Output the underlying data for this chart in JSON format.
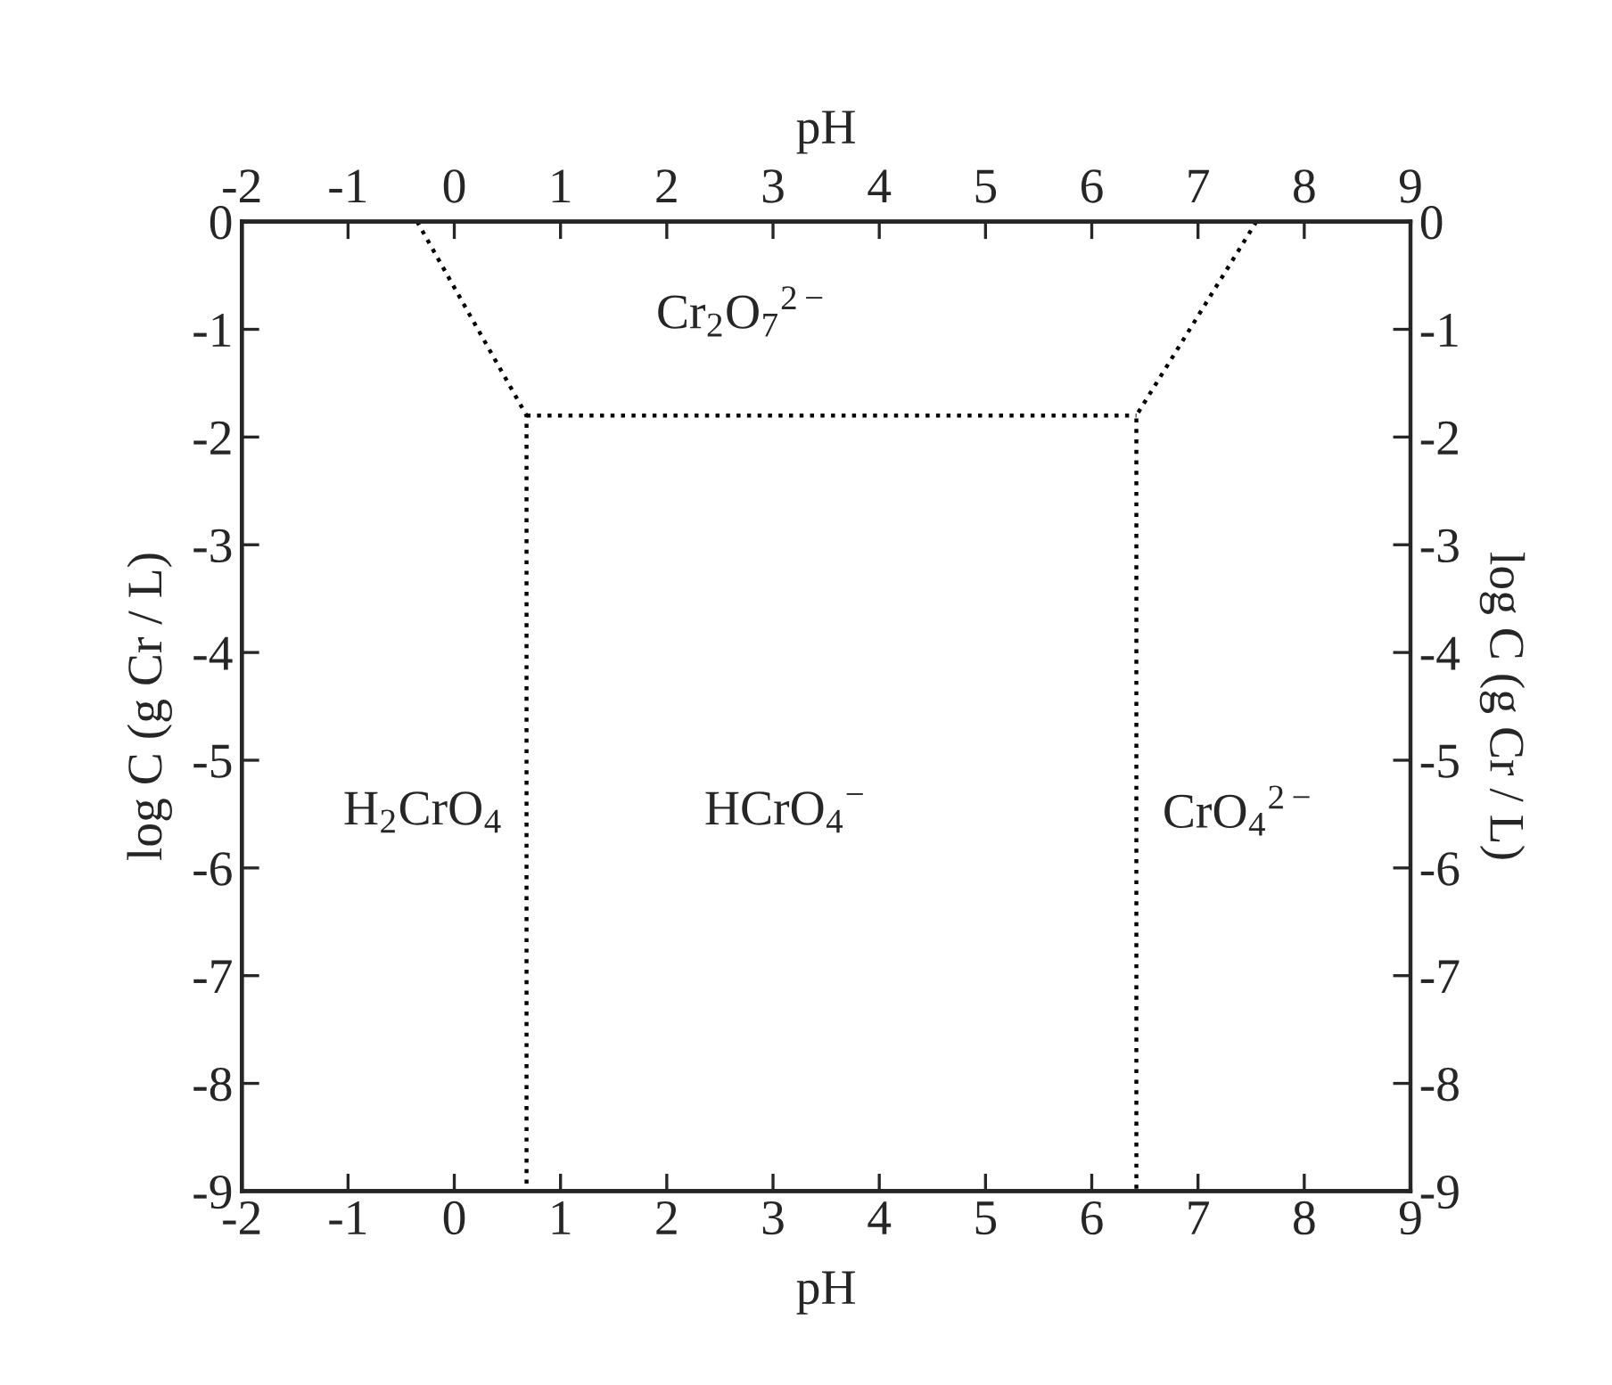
{
  "chart_data": {
    "type": "line",
    "xlabel": "pH",
    "ylabel": "log C (g Cr / L)",
    "x2label": "pH",
    "y2label": "log C (g Cr / L)",
    "xlim": [
      -2,
      9
    ],
    "xticks": [
      -2,
      -1,
      0,
      1,
      2,
      3,
      4,
      5,
      6,
      7,
      8,
      9
    ],
    "x2lim": [
      -2,
      9
    ],
    "x2ticks": [
      -2,
      -1,
      0,
      1,
      2,
      3,
      4,
      5,
      6,
      7,
      8,
      9
    ],
    "ylim": [
      -9,
      0
    ],
    "yticks": [
      -9,
      -8,
      -7,
      -6,
      -5,
      -4,
      -3,
      -2,
      -1,
      0
    ],
    "y2lim": [
      -9,
      0
    ],
    "y2ticks": [
      -9,
      -8,
      -7,
      -6,
      -5,
      -4,
      -3,
      -2,
      -1,
      0
    ],
    "line_style": "dotted",
    "series": [
      {
        "color": "#000000",
        "x": [
          -0.35,
          0.68,
          0.68
        ],
        "values": [
          0,
          -1.8,
          -9
        ]
      },
      {
        "color": "#000000",
        "x": [
          0.68,
          6.42
        ],
        "values": [
          -1.8,
          -1.8
        ]
      },
      {
        "color": "#000000",
        "x": [
          7.55,
          6.42,
          6.42
        ],
        "values": [
          0,
          -1.8,
          -9
        ]
      }
    ],
    "annotations": [
      "Cr$_{2}$O$_{7}$$^{2−}$",
      "H$_{2}$CrO$_{4}$",
      "HCrO$_{4}$$^{−}$",
      "CrO$_{4}$$^{2−}$"
    ]
  }
}
